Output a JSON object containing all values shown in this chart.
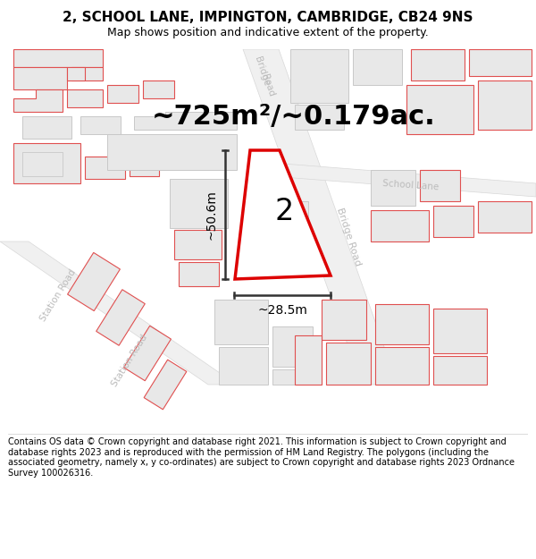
{
  "title": "2, SCHOOL LANE, IMPINGTON, CAMBRIDGE, CB24 9NS",
  "subtitle": "Map shows position and indicative extent of the property.",
  "area_label": "~725m²/~0.179ac.",
  "number_label": "2",
  "dim_width": "~28.5m",
  "dim_height": "~50.6m",
  "footer": "Contains OS data © Crown copyright and database right 2021. This information is subject to Crown copyright and database rights 2023 and is reproduced with the permission of HM Land Registry. The polygons (including the associated geometry, namely x, y co-ordinates) are subject to Crown copyright and database rights 2023 Ordnance Survey 100026316.",
  "bg_color": "#ffffff",
  "map_bg": "#ffffff",
  "building_fill": "#e8e8e8",
  "building_stroke": "#c8c8c8",
  "red_outline": "#e05050",
  "red_main": "#dd0000",
  "road_fill": "#ffffff",
  "road_center_color": "#d0d0d0",
  "label_color": "#bbbbbb",
  "dim_color": "#333333",
  "title_size": 11,
  "subtitle_size": 9,
  "footer_size": 7,
  "area_label_size": 22,
  "number_size": 24,
  "dim_text_size": 10
}
